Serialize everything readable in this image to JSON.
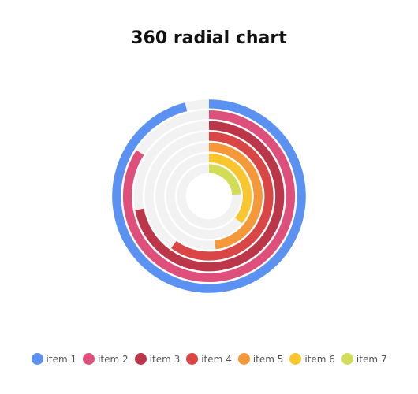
{
  "chart_data": {
    "type": "radial-bar",
    "title": "360 radial chart",
    "angle_range_degrees": [
      0,
      360
    ],
    "max": 100,
    "series": [
      {
        "name": "item 1",
        "value": 96,
        "color": "#5b91f1"
      },
      {
        "name": "item 2",
        "value": 84,
        "color": "#de4f7c"
      },
      {
        "name": "item 3",
        "value": 72,
        "color": "#bb3649"
      },
      {
        "name": "item 4",
        "value": 60,
        "color": "#da4645"
      },
      {
        "name": "item 5",
        "value": 48,
        "color": "#f4983a"
      },
      {
        "name": "item 6",
        "value": 36,
        "color": "#fac62e"
      },
      {
        "name": "item 7",
        "value": 24,
        "color": "#d1dc57"
      }
    ],
    "track_color": "#f2f2f2",
    "legend_position": "bottom-center"
  }
}
